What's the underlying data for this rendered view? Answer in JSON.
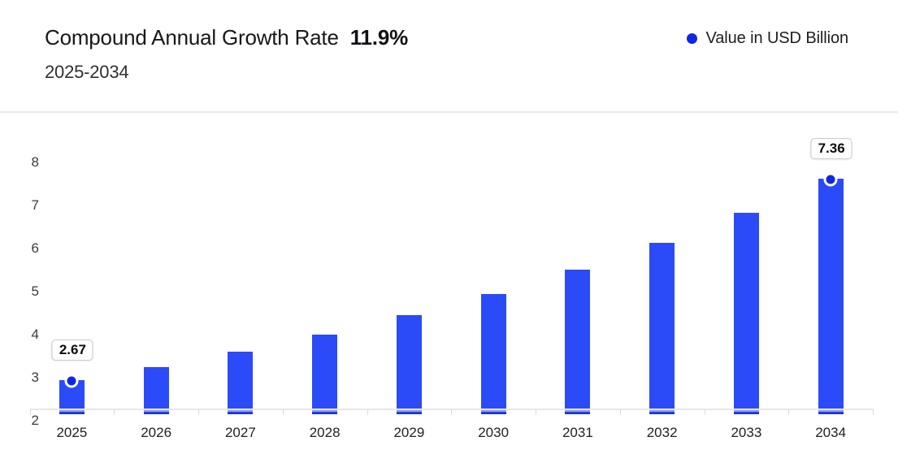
{
  "header": {
    "title": "Compound Annual Growth Rate",
    "cagr": "11.9%",
    "subtitle": "2025-2034"
  },
  "legend": {
    "label": "Value in USD Billion"
  },
  "chart_data": {
    "type": "bar",
    "title": "Compound Annual Growth Rate 11.9%",
    "subtitle": "2025-2034",
    "categories": [
      "2025",
      "2026",
      "2027",
      "2028",
      "2029",
      "2030",
      "2031",
      "2032",
      "2033",
      "2034"
    ],
    "series": [
      {
        "name": "Value in USD Billion",
        "values": [
          2.67,
          2.99,
          3.34,
          3.74,
          4.19,
          4.68,
          5.24,
          5.87,
          6.56,
          7.36
        ]
      }
    ],
    "point_labels": [
      {
        "category": "2025",
        "label": "2.67"
      },
      {
        "category": "2034",
        "label": "7.36"
      }
    ],
    "xlabel": "",
    "ylabel": "",
    "ylim": [
      2,
      8
    ],
    "yticks": [
      "2",
      "3",
      "4",
      "5",
      "6",
      "7",
      "8"
    ],
    "grid": false,
    "legend_position": "top-right",
    "colors": {
      "bar": "#2c4bf8",
      "marker_dot": "#0f27e2",
      "bar_bottom_light": "#8b9af5",
      "bar_bottom_dark": "#1c33cf",
      "axis_line": "#e7e7e8"
    }
  }
}
